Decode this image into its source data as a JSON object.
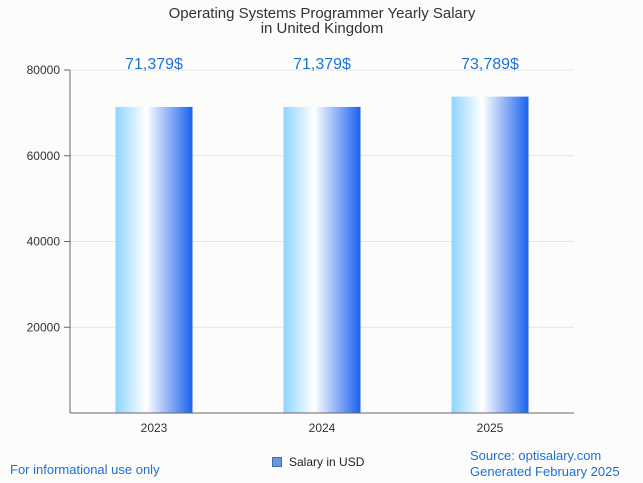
{
  "chart_data": {
    "type": "bar",
    "title": [
      "Operating Systems Programmer Yearly Salary",
      "in United Kingdom"
    ],
    "categories": [
      "2023",
      "2024",
      "2025"
    ],
    "series": [
      {
        "name": "Salary in USD",
        "values": [
          71379,
          71379,
          73789
        ]
      }
    ],
    "data_labels": [
      "71,379$",
      "71,379$",
      "73,789$"
    ],
    "ylim": [
      0,
      80000
    ],
    "y_ticks": [
      20000,
      40000,
      60000,
      80000
    ],
    "grid": true,
    "legend": "bottom-center",
    "colors": {
      "bar_light": "#ffffff",
      "bar_mid": "#8fd4ff",
      "bar_dark": "#1a62f0",
      "label": "#1e73d8"
    }
  },
  "footer": {
    "disclaimer": "For informational use only",
    "source": "Source: optisalary.com",
    "generated": "Generated February 2025"
  }
}
